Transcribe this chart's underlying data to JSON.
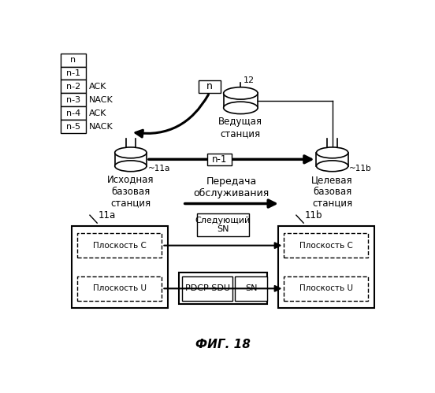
{
  "title": "ФИГ. 18",
  "bg_color": "#ffffff",
  "table_labels": [
    "n",
    "n-1",
    "n-2",
    "n-3",
    "n-4",
    "n-5"
  ],
  "ack_labels": [
    "",
    "",
    "ACK",
    "NACK",
    "ACK",
    "NACK"
  ],
  "station_12_label": "12",
  "station_12_text": "Ведущая\nстанция",
  "station_11a_label": "~11a",
  "station_11a_text": "Исходная\nбазовая\nстанция",
  "station_11b_label": "~11b",
  "station_11b_text": "Целевая\nбазовая\nстанция",
  "handover_text": "Передача\nобслуживания",
  "box_n_label": "n",
  "box_n1_label": "n-1",
  "label_11a_lower": "11a",
  "label_11b_lower": "11b",
  "c_plane_text": "Плоскость С",
  "u_plane_text": "Плоскость U",
  "next_sn_text": "Следующий\nSN",
  "pdcp_sdu_text": "PDCP SDU",
  "sn_text": "SN"
}
